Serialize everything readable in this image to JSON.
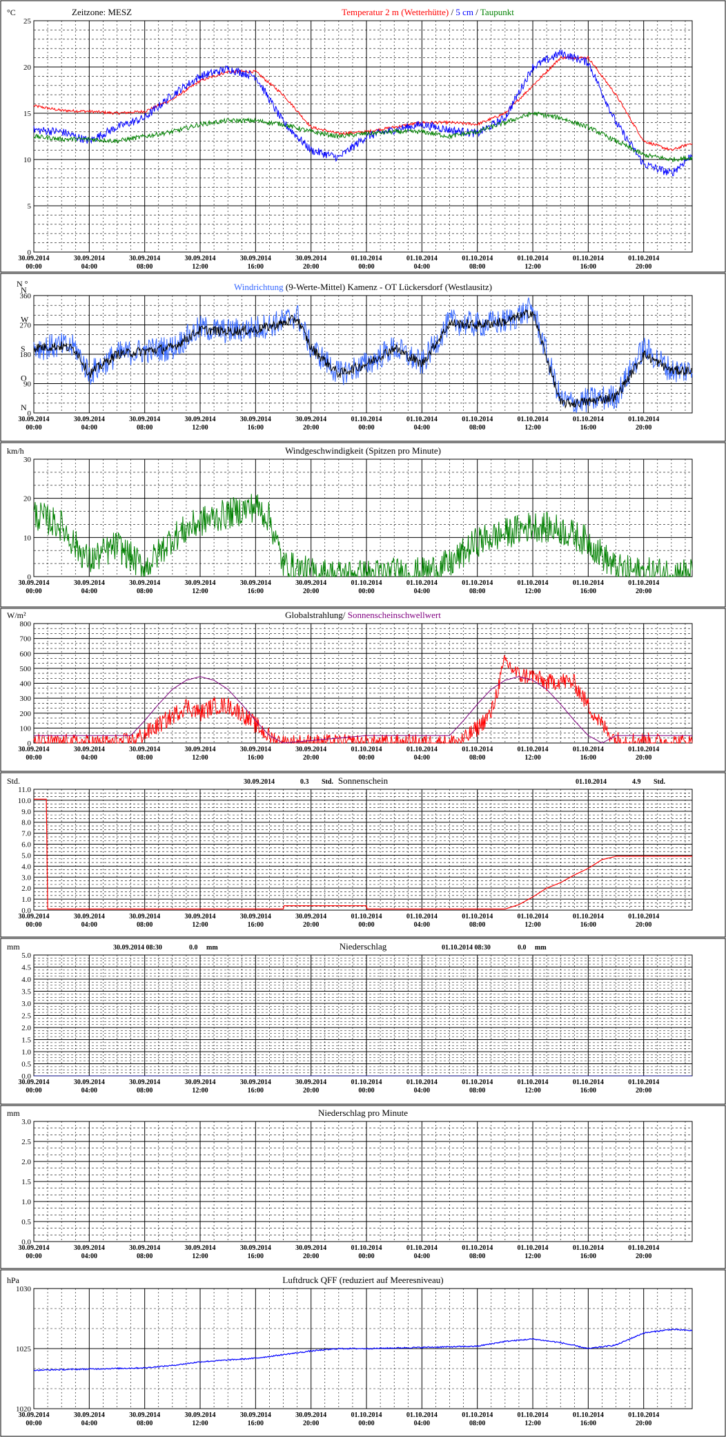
{
  "x_tick_labels": [
    [
      "30.09.2014",
      "00:00"
    ],
    [
      "30.09.2014",
      "04:00"
    ],
    [
      "30.09.2014",
      "08:00"
    ],
    [
      "30.09.2014",
      "12:00"
    ],
    [
      "30.09.2014",
      "16:00"
    ],
    [
      "30.09.2014",
      "20:00"
    ],
    [
      "01.10.2014",
      "00:00"
    ],
    [
      "01.10.2014",
      "04:00"
    ],
    [
      "01.10.2014",
      "08:00"
    ],
    [
      "01.10.2014",
      "12:00"
    ],
    [
      "01.10.2014",
      "16:00"
    ],
    [
      "01.10.2014",
      "20:00"
    ]
  ],
  "chart_data": [
    {
      "id": "temperature",
      "type": "line",
      "unit_label": "°C",
      "header_left": "Zeitzone: MESZ",
      "title_parts": [
        {
          "text": "Temperatur 2 m (Wetterhütte)",
          "color": "#ff0000"
        },
        {
          "text": "  /  ",
          "color": "#000000"
        },
        {
          "text": "5 cm",
          "color": "#0000ff"
        },
        {
          "text": " / ",
          "color": "#000000"
        },
        {
          "text": "Taupunkt",
          "color": "#008000"
        }
      ],
      "ylim": [
        0,
        25
      ],
      "yticks": [
        0,
        5,
        10,
        15,
        20,
        25
      ],
      "ytick_labels": [
        "0",
        "5",
        "10",
        "15",
        "20",
        "25"
      ],
      "x_hours": [
        0,
        2,
        4,
        6,
        8,
        10,
        12,
        14,
        16,
        18,
        20,
        22,
        24,
        26,
        28,
        30,
        32,
        34,
        36,
        38,
        40,
        42,
        44,
        46,
        47.5
      ],
      "series": [
        {
          "color": "#ff0000",
          "noise": 0.15,
          "values": [
            15.8,
            15.3,
            15.2,
            15.0,
            15.2,
            16.5,
            18.5,
            19.5,
            19.5,
            17.0,
            13.5,
            12.8,
            13.0,
            13.5,
            14.0,
            14.0,
            13.8,
            15.0,
            18.0,
            21.0,
            21.0,
            17.0,
            12.0,
            11.0,
            11.8
          ]
        },
        {
          "color": "#0000ff",
          "noise": 0.45,
          "values": [
            13.2,
            13.0,
            12.0,
            13.5,
            14.5,
            17.0,
            19.0,
            19.8,
            19.0,
            14.0,
            11.0,
            10.2,
            12.5,
            13.2,
            13.8,
            13.2,
            12.8,
            14.5,
            20.0,
            21.5,
            20.5,
            14.0,
            9.5,
            8.5,
            10.5
          ]
        },
        {
          "color": "#008000",
          "noise": 0.25,
          "values": [
            12.5,
            12.2,
            12.2,
            12.0,
            12.5,
            13.0,
            13.8,
            14.2,
            14.2,
            13.8,
            13.0,
            12.5,
            12.8,
            13.0,
            13.0,
            12.5,
            13.0,
            14.0,
            15.0,
            14.5,
            13.5,
            12.0,
            10.5,
            10.0,
            10.2
          ]
        }
      ]
    },
    {
      "id": "wind_direction",
      "type": "line",
      "unit_label": "N °",
      "title_parts": [
        {
          "text": "Windrichtung",
          "color": "#3366ff"
        },
        {
          "text": " (9-Werte-Mittel)",
          "color": "#000000"
        },
        {
          "text": "          Kamenz - OT Lückersdorf (Westlausitz)",
          "color": "#000000"
        }
      ],
      "compass_labels": [
        "N",
        "W",
        "S",
        "O",
        "N"
      ],
      "ylim": [
        0,
        360
      ],
      "yticks": [
        0,
        90,
        180,
        270,
        360
      ],
      "ytick_labels": [
        "0",
        "90",
        "180",
        "270",
        "360"
      ],
      "x_hours": [
        0,
        2,
        3,
        4,
        6,
        8,
        10,
        12,
        14,
        16,
        18,
        19,
        20,
        22,
        24,
        26,
        28,
        30,
        32,
        34,
        36,
        38,
        39,
        40,
        42,
        44,
        46,
        47.5
      ],
      "series": [
        {
          "color": "#3366ff",
          "noise": 40,
          "values": [
            200,
            205,
            200,
            120,
            180,
            190,
            200,
            260,
            250,
            260,
            280,
            300,
            200,
            120,
            150,
            200,
            150,
            280,
            270,
            280,
            320,
            40,
            30,
            40,
            50,
            200,
            130,
            130
          ]
        },
        {
          "color": "#000000",
          "noise": 15,
          "values": [
            200,
            205,
            195,
            120,
            180,
            190,
            200,
            255,
            250,
            255,
            275,
            290,
            200,
            120,
            150,
            200,
            150,
            275,
            270,
            280,
            310,
            30,
            30,
            35,
            50,
            180,
            130,
            130
          ]
        }
      ]
    },
    {
      "id": "wind_speed",
      "type": "line",
      "unit_label": "km/h",
      "title_parts": [
        {
          "text": "Windgeschwindigkeit (Spitzen pro Minute)",
          "color": "#000000"
        }
      ],
      "ylim": [
        0,
        30
      ],
      "yticks": [
        0,
        10,
        20,
        30
      ],
      "ytick_labels": [
        "0",
        "10",
        "20",
        "30"
      ],
      "x_hours": [
        0,
        2,
        3,
        4,
        6,
        7,
        8,
        10,
        12,
        14,
        16,
        17,
        18,
        20,
        22,
        24,
        26,
        28,
        30,
        32,
        34,
        36,
        38,
        40,
        42,
        44,
        46,
        47.5
      ],
      "series": [
        {
          "color": "#008000",
          "noise": 4,
          "values": [
            16,
            13,
            8,
            4,
            8,
            5,
            2,
            10,
            14,
            16,
            18,
            15,
            3,
            1,
            0.5,
            0.5,
            1,
            1,
            3,
            9,
            11,
            13,
            12,
            9,
            2,
            1,
            1,
            1
          ]
        }
      ]
    },
    {
      "id": "radiation",
      "type": "line",
      "unit_label": "W/m²",
      "title_parts": [
        {
          "text": "Globalstrahlung/ ",
          "color": "#000000"
        },
        {
          "text": "Sonnenscheinschwellwert",
          "color": "#800080"
        }
      ],
      "ylim": [
        0,
        800
      ],
      "yticks": [
        0,
        100,
        200,
        300,
        400,
        500,
        600,
        700,
        800
      ],
      "ytick_labels": [
        "0",
        "100",
        "200",
        "300",
        "400",
        "500",
        "600",
        "700",
        "800"
      ],
      "x_hours": [
        0,
        6,
        7,
        8,
        9,
        10,
        11,
        12,
        13,
        14,
        15,
        16,
        17,
        18,
        24,
        30,
        31,
        32,
        33,
        34,
        35,
        36,
        37,
        38,
        39,
        40,
        41,
        42,
        47.5
      ],
      "series": [
        {
          "color": "#ff0000",
          "noise": 60,
          "values": [
            0,
            0,
            10,
            60,
            120,
            180,
            250,
            200,
            250,
            250,
            200,
            120,
            40,
            0,
            0,
            0,
            20,
            100,
            200,
            550,
            450,
            450,
            400,
            420,
            400,
            250,
            120,
            20,
            0
          ]
        },
        {
          "color": "#800080",
          "noise": 0,
          "values": [
            50,
            50,
            50,
            150,
            260,
            360,
            420,
            445,
            420,
            360,
            260,
            150,
            50,
            0,
            50,
            50,
            150,
            260,
            360,
            420,
            445,
            420,
            360,
            260,
            150,
            50,
            0,
            50,
            50
          ]
        }
      ]
    },
    {
      "id": "sunshine",
      "type": "line",
      "unit_label": "Std.",
      "title_parts": [
        {
          "text": "Sonnenschein",
          "color": "#000000"
        }
      ],
      "day_summaries": [
        {
          "date": "30.09.2014",
          "value": "0.3",
          "unit": "Std."
        },
        {
          "date": "01.10.2014",
          "value": "4.9",
          "unit": "Std."
        }
      ],
      "ylim": [
        0,
        11
      ],
      "yticks": [
        0,
        1,
        2,
        3,
        4,
        5,
        6,
        7,
        8,
        9,
        10,
        11
      ],
      "ytick_labels": [
        "0.0",
        "1.0",
        "2.0",
        "3.0",
        "4.0",
        "5.0",
        "6.0",
        "7.0",
        "8.0",
        "9.0",
        "10.0",
        "11.0"
      ],
      "x_hours": [
        0,
        0.9,
        1,
        18,
        18.05,
        24,
        24.05,
        34,
        35,
        36,
        37,
        38,
        39,
        40,
        41,
        42,
        47.5
      ],
      "series": [
        {
          "color": "#ff0000",
          "noise": 0,
          "values": [
            10.1,
            10.1,
            0.1,
            0.1,
            0.4,
            0.4,
            0.1,
            0.1,
            0.5,
            1.2,
            2.0,
            2.5,
            3.2,
            3.8,
            4.6,
            4.9,
            4.9
          ]
        }
      ]
    },
    {
      "id": "precipitation",
      "type": "line",
      "unit_label": "mm",
      "title_parts": [
        {
          "text": "Niederschlag",
          "color": "#000000"
        }
      ],
      "day_summaries": [
        {
          "date": "30.09.2014 08:30",
          "value": "0.0",
          "unit": "mm"
        },
        {
          "date": "01.10.2014 08:30",
          "value": "0.0",
          "unit": "mm"
        }
      ],
      "ylim": [
        0,
        5
      ],
      "yticks": [
        0,
        0.5,
        1,
        1.5,
        2,
        2.5,
        3,
        3.5,
        4,
        4.5,
        5
      ],
      "ytick_labels": [
        "0.0",
        "0.5",
        "1.0",
        "1.5",
        "2.0",
        "2.5",
        "3.0",
        "3.5",
        "4.0",
        "4.5",
        "5.0"
      ],
      "x_hours": [
        0,
        47.5
      ],
      "series": [
        {
          "color": "#000080",
          "noise": 0,
          "values": [
            0,
            0
          ]
        }
      ]
    },
    {
      "id": "precipitation_minute",
      "type": "line",
      "unit_label": "mm",
      "title_parts": [
        {
          "text": "Niederschlag pro Minute",
          "color": "#000000"
        }
      ],
      "ylim": [
        0,
        3
      ],
      "yticks": [
        0,
        0.5,
        1,
        1.5,
        2,
        2.5,
        3
      ],
      "ytick_labels": [
        "0.0",
        "0.5",
        "1.0",
        "1.5",
        "2.0",
        "2.5",
        "3.0"
      ],
      "x_hours": [],
      "series": []
    },
    {
      "id": "pressure",
      "type": "line",
      "unit_label": "hPa",
      "title_parts": [
        {
          "text": "Luftdruck QFF (reduziert auf Meeresniveau)",
          "color": "#000000"
        }
      ],
      "ylim": [
        1020,
        1030
      ],
      "yticks": [
        1020,
        1025,
        1030
      ],
      "ytick_labels": [
        "1020",
        "1025",
        "1030"
      ],
      "x_hours": [
        0,
        4,
        8,
        10,
        12,
        16,
        18,
        20,
        22,
        24,
        28,
        32,
        34,
        36,
        38,
        40,
        42,
        44,
        46,
        47.5
      ],
      "series": [
        {
          "color": "#0000ff",
          "noise": 0.05,
          "values": [
            1023.2,
            1023.3,
            1023.4,
            1023.6,
            1023.9,
            1024.2,
            1024.5,
            1024.8,
            1025.0,
            1025.0,
            1025.1,
            1025.2,
            1025.6,
            1025.8,
            1025.5,
            1025.0,
            1025.3,
            1026.3,
            1026.6,
            1026.5
          ]
        }
      ]
    }
  ]
}
